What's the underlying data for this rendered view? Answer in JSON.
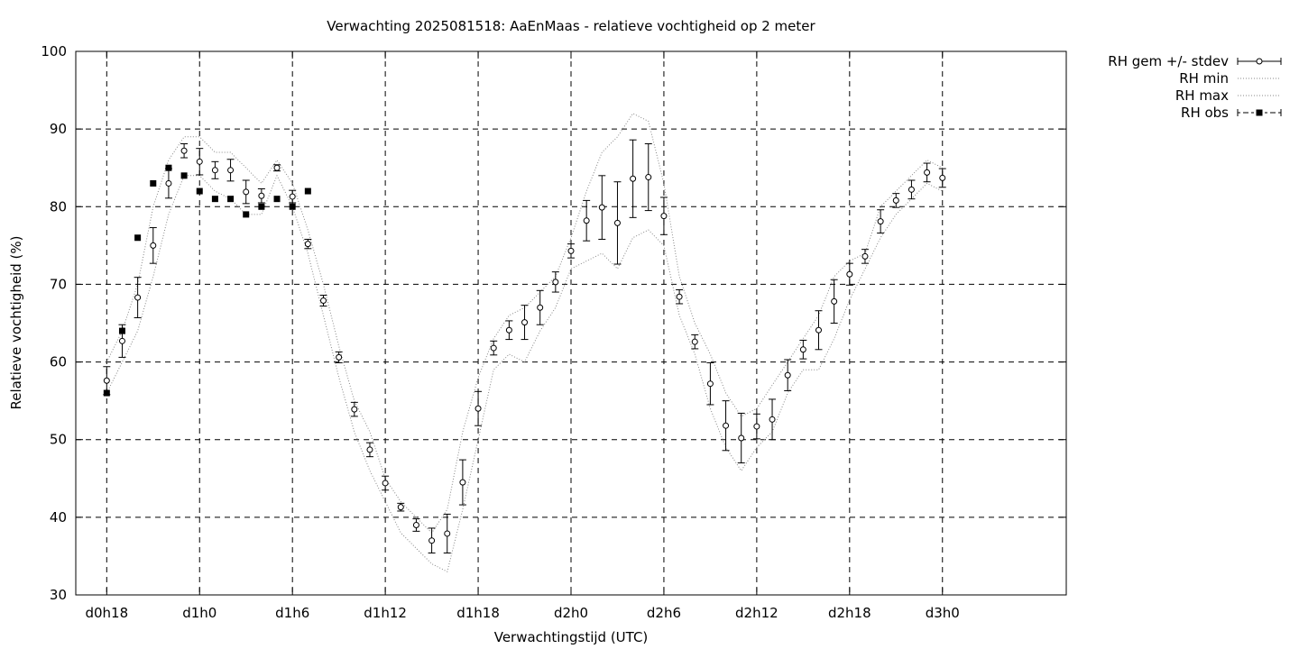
{
  "chart_data": {
    "type": "line",
    "title": "Verwachting 2025081518: AaEnMaas - relatieve vochtigheid op 2 meter",
    "xlabel": "Verwachtingstijd (UTC)",
    "ylabel": "Relatieve vochtigheid (%)",
    "xlim": [
      16,
      80
    ],
    "ylim": [
      30,
      100
    ],
    "x_ticks": [
      {
        "x": 18,
        "label": "d0h18"
      },
      {
        "x": 24,
        "label": "d1h0"
      },
      {
        "x": 30,
        "label": "d1h6"
      },
      {
        "x": 36,
        "label": "d1h12"
      },
      {
        "x": 42,
        "label": "d1h18"
      },
      {
        "x": 48,
        "label": "d2h0"
      },
      {
        "x": 54,
        "label": "d2h6"
      },
      {
        "x": 60,
        "label": "d2h12"
      },
      {
        "x": 66,
        "label": "d2h18"
      },
      {
        "x": 72,
        "label": "d3h0"
      }
    ],
    "y_ticks": [
      30,
      40,
      50,
      60,
      70,
      80,
      90,
      100
    ],
    "grid": true,
    "legend": "top-right",
    "series": [
      {
        "name": "RH gem +/- stdev",
        "style": "errorbars",
        "x": [
          18,
          19,
          20,
          21,
          22,
          23,
          24,
          25,
          26,
          27,
          28,
          29,
          30,
          31,
          32,
          33,
          34,
          35,
          36,
          37,
          38,
          39,
          40,
          41,
          42,
          43,
          44,
          45,
          46,
          47,
          48,
          49,
          50,
          51,
          52,
          53,
          54,
          55,
          56,
          57,
          58,
          59,
          60,
          61,
          62,
          63,
          64,
          65,
          66,
          67,
          68,
          69,
          70,
          71,
          72
        ],
        "values": [
          57.6,
          62.7,
          68.3,
          75,
          83,
          87.2,
          85.8,
          84.7,
          84.7,
          81.9,
          81.4,
          85,
          81.3,
          75.2,
          67.9,
          60.6,
          53.9,
          48.7,
          44.4,
          41.3,
          39.0,
          37.0,
          37.9,
          44.5,
          54.0,
          61.8,
          64.1,
          65.1,
          67.0,
          70.3,
          74.3,
          78.2,
          79.9,
          77.9,
          83.6,
          83.8,
          78.8,
          68.4,
          62.6,
          57.2,
          51.8,
          50.2,
          51.7,
          52.6,
          58.3,
          61.6,
          64.1,
          67.8,
          71.3,
          73.6,
          78.1,
          80.8,
          82.2,
          84.4,
          83.7
        ],
        "stdev": [
          1.8,
          2.1,
          2.6,
          2.3,
          1.9,
          0.9,
          1.7,
          1.1,
          1.4,
          1.5,
          0.9,
          0.4,
          0.8,
          0.6,
          0.7,
          0.7,
          0.9,
          0.9,
          0.9,
          0.5,
          0.8,
          1.6,
          2.5,
          2.9,
          2.2,
          0.9,
          1.2,
          2.2,
          2.2,
          1.3,
          0.9,
          2.6,
          4.1,
          5.3,
          5.0,
          4.3,
          2.4,
          0.9,
          0.9,
          2.7,
          3.2,
          3.2,
          1.6,
          2.6,
          2.0,
          1.2,
          2.5,
          2.8,
          1.4,
          0.9,
          1.5,
          0.9,
          1.2,
          1.2,
          1.2
        ]
      },
      {
        "name": "RH min",
        "style": "dotted",
        "x": [
          18,
          19,
          20,
          21,
          22,
          23,
          24,
          25,
          26,
          27,
          28,
          29,
          30,
          31,
          32,
          33,
          34,
          35,
          36,
          37,
          38,
          39,
          40,
          41,
          42,
          43,
          44,
          45,
          46,
          47,
          48,
          49,
          50,
          51,
          52,
          53,
          54,
          55,
          56,
          57,
          58,
          59,
          60,
          61,
          62,
          63,
          64,
          65,
          66,
          67,
          68,
          69,
          70,
          71,
          72
        ],
        "values": [
          56,
          60,
          64,
          71,
          79,
          84,
          84,
          82,
          81,
          79,
          79,
          84,
          80,
          74,
          66,
          58,
          51,
          46,
          42,
          38,
          36,
          34,
          33,
          41,
          50,
          59,
          61,
          60,
          64,
          67,
          72,
          73,
          74,
          72,
          76,
          77,
          75,
          66,
          61,
          54,
          49,
          46,
          49,
          51,
          56,
          59,
          59,
          63,
          68,
          72,
          76,
          79,
          81,
          83,
          82
        ]
      },
      {
        "name": "RH max",
        "style": "dotted",
        "x": [
          18,
          19,
          20,
          21,
          22,
          23,
          24,
          25,
          26,
          27,
          28,
          29,
          30,
          31,
          32,
          33,
          34,
          35,
          36,
          37,
          38,
          39,
          40,
          41,
          42,
          43,
          44,
          45,
          46,
          47,
          48,
          49,
          50,
          51,
          52,
          53,
          54,
          55,
          56,
          57,
          58,
          59,
          60,
          61,
          62,
          63,
          64,
          65,
          66,
          67,
          68,
          69,
          70,
          71,
          72
        ],
        "values": [
          60,
          64,
          70,
          80,
          86,
          89,
          89,
          87,
          87,
          85,
          83,
          86,
          83,
          77,
          70,
          62,
          55,
          51,
          45,
          42,
          40,
          38,
          41,
          51,
          58,
          63,
          66,
          67,
          69,
          71,
          76,
          82,
          87,
          89,
          92,
          91,
          83,
          71,
          65,
          61,
          56,
          53,
          54,
          57,
          60,
          63,
          66,
          71,
          73,
          74,
          80,
          82,
          84,
          86,
          85
        ]
      },
      {
        "name": "RH obs",
        "style": "squares",
        "x": [
          18,
          19,
          20,
          21,
          22,
          23,
          24,
          25,
          26,
          27,
          28,
          29,
          30,
          31
        ],
        "values": [
          56,
          64,
          76,
          83,
          85,
          84,
          82,
          81,
          81,
          79,
          80,
          81,
          80,
          82
        ]
      }
    ]
  }
}
